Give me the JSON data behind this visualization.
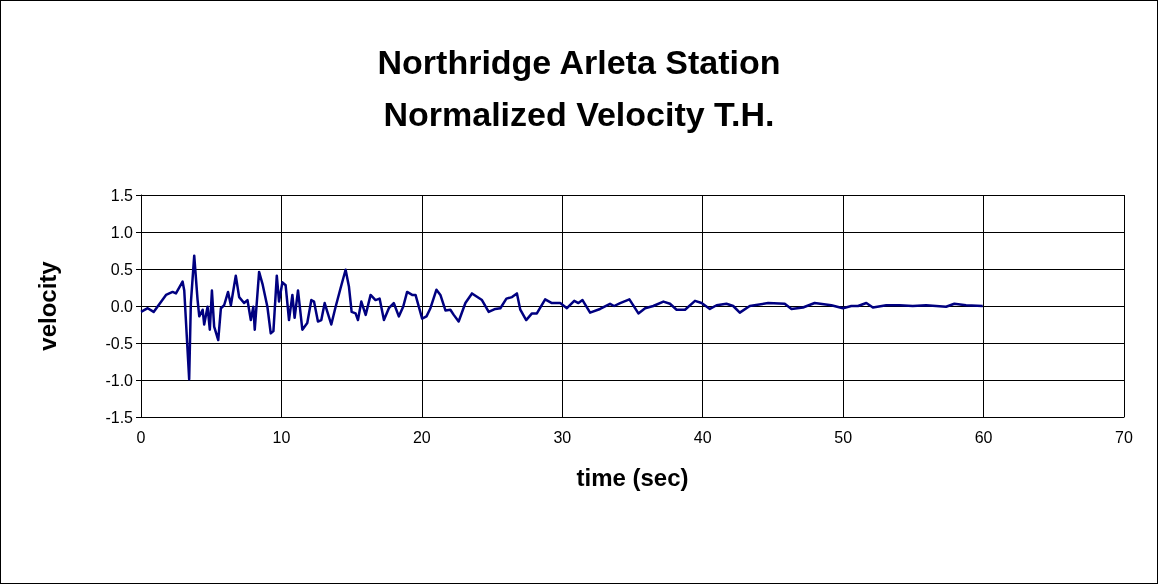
{
  "chart_data": {
    "type": "line",
    "title": "Northridge Arleta Station\nNormalized Velocity T.H.",
    "xlabel": "time (sec)",
    "ylabel": "velocity",
    "xlim": [
      0,
      70
    ],
    "xticks": [
      0,
      10,
      20,
      30,
      40,
      50,
      60,
      70
    ],
    "ylim": [
      -1.5,
      1.5
    ],
    "yticks": [
      {
        "value": -1.5,
        "label": "-1.5"
      },
      {
        "value": -1,
        "label": "-1.0"
      },
      {
        "value": -0.5,
        "label": "-0.5"
      },
      {
        "value": 0,
        "label": "0.0"
      },
      {
        "value": 0.5,
        "label": "0.5"
      },
      {
        "value": 1,
        "label": "1.0"
      },
      {
        "value": 1.5,
        "label": "1.5"
      }
    ],
    "grid": true,
    "marker": "none",
    "line_style": "solid",
    "series": [
      {
        "color": "#000080",
        "x": [
          0,
          0.48,
          0.9,
          1.78,
          2.25,
          2.49,
          2.96,
          3.08,
          3.43,
          3.55,
          3.79,
          4.03,
          4.15,
          4.39,
          4.5,
          4.74,
          4.9,
          5.05,
          5.21,
          5.5,
          5.69,
          5.92,
          6.2,
          6.4,
          6.75,
          6.99,
          7.34,
          7.58,
          7.82,
          8.0,
          8.1,
          8.41,
          8.65,
          9.0,
          9.24,
          9.43,
          9.67,
          9.83,
          10.07,
          10.3,
          10.54,
          10.78,
          10.94,
          11.18,
          11.49,
          11.84,
          12.13,
          12.32,
          12.6,
          12.84,
          13.08,
          13.27,
          13.55,
          13.86,
          14.21,
          14.57,
          14.81,
          15.0,
          15.28,
          15.45,
          15.69,
          16.0,
          16.35,
          16.7,
          16.99,
          17.3,
          17.65,
          18.0,
          18.36,
          18.67,
          18.95,
          19.31,
          19.55,
          20.02,
          20.33,
          20.61,
          21.04,
          21.32,
          21.68,
          22.03,
          22.27,
          22.62,
          23.1,
          23.57,
          24.28,
          24.76,
          25.23,
          25.59,
          26.02,
          26.42,
          26.77,
          27.01,
          27.43,
          27.84,
          28.19,
          28.78,
          29.26,
          29.85,
          30.33,
          30.85,
          31.15,
          31.44,
          31.98,
          32.69,
          33.4,
          33.69,
          34.12,
          34.78,
          35.42,
          35.9,
          36.48,
          37.2,
          37.67,
          38.14,
          38.74,
          39.45,
          39.92,
          40.51,
          40.99,
          41.69,
          42.17,
          42.64,
          43.35,
          44.66,
          45.84,
          46.32,
          47.14,
          47.97,
          49.16,
          49.99,
          50.58,
          51.06,
          51.65,
          52.12,
          53.07,
          54.02,
          54.96,
          55.91,
          57.33,
          57.92,
          58.75,
          59.94
        ],
        "values": [
          -0.08,
          -0.03,
          -0.08,
          0.15,
          0.19,
          0.17,
          0.33,
          0.21,
          -0.99,
          0.04,
          0.68,
          0.08,
          -0.14,
          -0.05,
          -0.25,
          -0.01,
          -0.32,
          0.21,
          -0.28,
          -0.46,
          -0.03,
          0.01,
          0.19,
          0.01,
          0.41,
          0.12,
          0.04,
          0.08,
          -0.19,
          -0.01,
          -0.32,
          0.46,
          0.3,
          -0.01,
          -0.37,
          -0.34,
          0.41,
          0.06,
          0.32,
          0.28,
          -0.19,
          0.15,
          -0.16,
          0.21,
          -0.32,
          -0.23,
          0.08,
          0.06,
          -0.21,
          -0.19,
          0.04,
          -0.08,
          -0.25,
          -0.01,
          0.24,
          0.49,
          0.26,
          -0.08,
          -0.1,
          -0.19,
          0.06,
          -0.12,
          0.15,
          0.08,
          0.1,
          -0.19,
          -0.03,
          0.04,
          -0.14,
          -0.01,
          0.19,
          0.15,
          0.15,
          -0.17,
          -0.14,
          -0.03,
          0.22,
          0.15,
          -0.06,
          -0.05,
          -0.12,
          -0.21,
          0.04,
          0.17,
          0.08,
          -0.08,
          -0.04,
          -0.03,
          0.1,
          0.12,
          0.17,
          -0.05,
          -0.19,
          -0.1,
          -0.1,
          0.09,
          0.04,
          0.04,
          -0.03,
          0.07,
          0.04,
          0.08,
          -0.09,
          -0.04,
          0.03,
          0,
          0.04,
          0.09,
          -0.1,
          -0.03,
          0,
          0.06,
          0.03,
          -0.05,
          -0.05,
          0.07,
          0.04,
          -0.04,
          0.01,
          0.03,
          0,
          -0.09,
          0,
          0.04,
          0.03,
          -0.04,
          -0.02,
          0.04,
          0.01,
          -0.03,
          0,
          0,
          0.04,
          -0.02,
          0.01,
          0.01,
          0,
          0.01,
          -0.01,
          0.03,
          0.01,
          0
        ]
      }
    ]
  }
}
